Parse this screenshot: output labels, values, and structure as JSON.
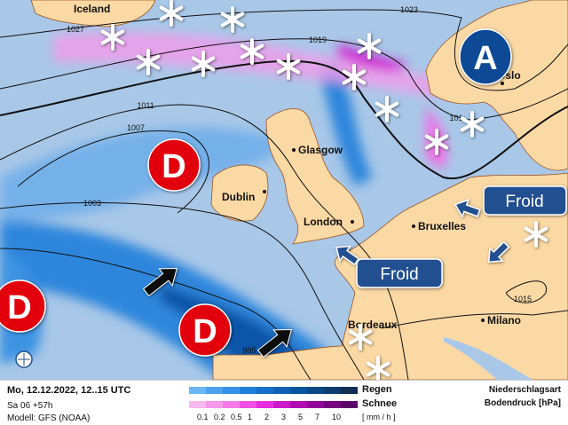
{
  "map": {
    "countries": [
      "Iceland"
    ],
    "cities": [
      "Glasgow",
      "Dublin",
      "London",
      "Bruxelles",
      "Bordeaux",
      "Milano",
      "Oslo"
    ],
    "isobars": [
      "1027",
      "1023",
      "1019",
      "1011",
      "1007",
      "1003",
      "995",
      "1015",
      "101"
    ],
    "pressure_centers": {
      "high": "A",
      "low": "D"
    },
    "cold_label": "Froid",
    "colors": {
      "land": "#fbd9a5",
      "sea": "#a9c8e8",
      "high": "#0d4a94",
      "low": "#e3000f",
      "cold_box": "#23508f"
    }
  },
  "legend": {
    "date": "Mo, 12.12.2022, 12..15 UTC",
    "run": "Sa 06 +57h",
    "model": "Modell: GFS (NOAA)",
    "rain_label": "Regen",
    "snow_label": "Schnee",
    "unit": "[ mm / h ]",
    "ticks": [
      "0.1",
      "0.2",
      "0.5",
      "1",
      "2",
      "3",
      "5",
      "7",
      "10"
    ],
    "title1": "Niederschlagsart",
    "title2": "Bodendruck [hPa]",
    "rain_colors": [
      "#6cb4f4",
      "#4ca2ee",
      "#3690e6",
      "#1f7fdc",
      "#1570cc",
      "#0d61b6",
      "#0a549f",
      "#0a4888",
      "#0c3c70",
      "#102f55"
    ],
    "snow_colors": [
      "#f8b8f0",
      "#f69ae9",
      "#f47ae6",
      "#f050e6",
      "#e62ee0",
      "#cc18cc",
      "#b00cb4",
      "#92079a",
      "#74057f",
      "#5a0466"
    ]
  }
}
